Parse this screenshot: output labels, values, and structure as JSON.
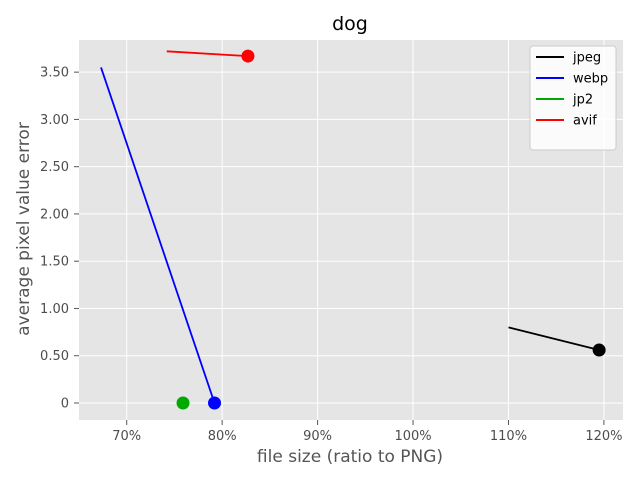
{
  "chart_data": {
    "type": "line",
    "title": "dog",
    "xlabel": "file size (ratio to PNG)",
    "ylabel": "average pixel value error",
    "xlim": [
      0.65,
      1.22
    ],
    "ylim": [
      -0.18,
      3.84
    ],
    "grid": true,
    "legend_position": "top-right",
    "x_ticks": [
      {
        "value": 0.7,
        "label": "70%"
      },
      {
        "value": 0.8,
        "label": "80%"
      },
      {
        "value": 0.9,
        "label": "90%"
      },
      {
        "value": 1.0,
        "label": "100%"
      },
      {
        "value": 1.1,
        "label": "110%"
      },
      {
        "value": 1.2,
        "label": "120%"
      }
    ],
    "y_ticks": [
      {
        "value": 0.0,
        "label": "0"
      },
      {
        "value": 0.5,
        "label": "0.50"
      },
      {
        "value": 1.0,
        "label": "1.00"
      },
      {
        "value": 1.5,
        "label": "1.50"
      },
      {
        "value": 2.0,
        "label": "2.00"
      },
      {
        "value": 2.5,
        "label": "2.50"
      },
      {
        "value": 3.0,
        "label": "3.00"
      },
      {
        "value": 3.5,
        "label": "3.50"
      }
    ],
    "series": [
      {
        "name": "jpeg",
        "color": "#000000",
        "points": [
          {
            "x": 1.1,
            "y": 0.8
          },
          {
            "x": 1.195,
            "y": 0.56
          }
        ],
        "marker": {
          "x": 1.195,
          "y": 0.56
        }
      },
      {
        "name": "webp",
        "color": "#0000ff",
        "points": [
          {
            "x": 0.673,
            "y": 3.55
          },
          {
            "x": 0.792,
            "y": 0.0
          }
        ],
        "marker": {
          "x": 0.792,
          "y": 0.0
        }
      },
      {
        "name": "jp2",
        "color": "#00aa00",
        "points": [
          {
            "x": 0.759,
            "y": 0.0
          }
        ],
        "marker": {
          "x": 0.759,
          "y": 0.0
        }
      },
      {
        "name": "avif",
        "color": "#ff0000",
        "points": [
          {
            "x": 0.742,
            "y": 3.72
          },
          {
            "x": 0.827,
            "y": 3.67
          }
        ],
        "marker": {
          "x": 0.827,
          "y": 3.67
        }
      }
    ]
  },
  "colors": {
    "plot_background": "#e5e5e5",
    "grid": "#ffffff",
    "legend_background": "#ffffff",
    "legend_border": "#cccccc"
  }
}
